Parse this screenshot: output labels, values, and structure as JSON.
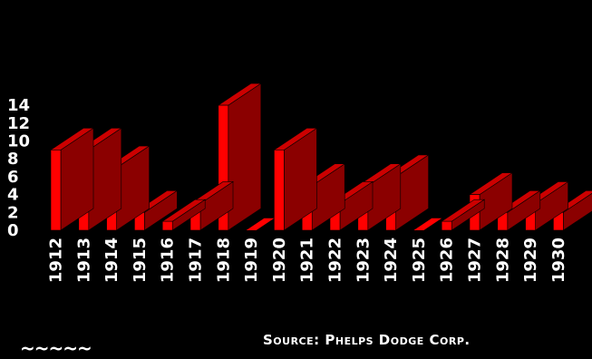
{
  "chart_data": {
    "type": "bar",
    "categories": [
      "1912",
      "1913",
      "1914",
      "1915",
      "1916",
      "1917",
      "1918",
      "1919",
      "1920",
      "1921",
      "1922",
      "1923",
      "1924",
      "1925",
      "1926",
      "1927",
      "1928",
      "1929",
      "1930"
    ],
    "values": [
      9,
      9,
      7,
      2,
      1,
      3,
      14,
      0,
      9,
      5,
      3,
      5,
      6,
      0,
      1,
      4,
      2,
      3,
      2
    ],
    "yticks": [
      0,
      2,
      4,
      6,
      8,
      10,
      12,
      14
    ],
    "ylim": [
      0,
      14
    ],
    "title": "",
    "xlabel": "",
    "ylabel": "",
    "grid": false,
    "legend": "none",
    "colors": {
      "background": "#000000",
      "bar_front": "#ff0000",
      "bar_side": "#8b0000",
      "bar_top": "#cc0000",
      "text": "#ffffff"
    }
  },
  "footer": {
    "source": "Source: Phelps Dodge Corp.",
    "squiggle": "~~~~~"
  }
}
